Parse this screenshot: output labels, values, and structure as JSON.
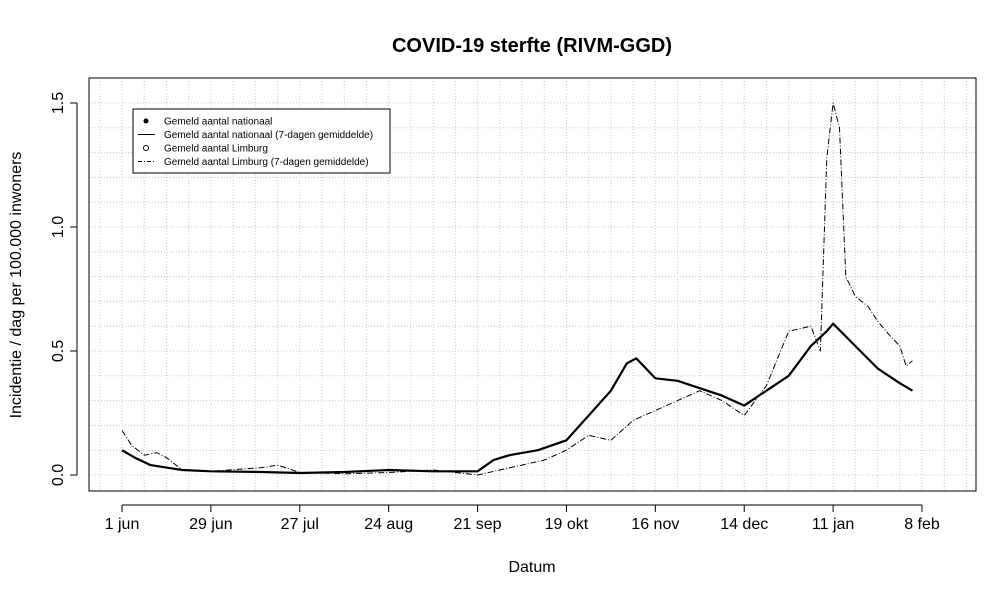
{
  "chart_data": {
    "type": "line",
    "title": "COVID-19 sterfte (RIVM-GGD)",
    "xlabel": "Datum",
    "ylabel": "Incidentie / dag per 100.000 inwoners",
    "x_ticks": [
      "1 jun",
      "29 jun",
      "27 jul",
      "24 aug",
      "21 sep",
      "19 okt",
      "16 nov",
      "14 dec",
      "11 jan",
      "8 feb"
    ],
    "x_tick_dates": [
      "2020-06-01",
      "2020-06-29",
      "2020-07-27",
      "2020-08-24",
      "2020-09-21",
      "2020-10-19",
      "2020-11-16",
      "2020-12-14",
      "2021-01-11",
      "2021-02-08"
    ],
    "xlim": [
      "2020-05-22",
      "2021-02-24"
    ],
    "y_ticks": [
      "0.0",
      "0.5",
      "1.0",
      "1.5"
    ],
    "y_tick_values": [
      0.0,
      0.5,
      1.0,
      1.5
    ],
    "ylim": [
      -0.06,
      1.56
    ],
    "grid": true,
    "legend_position": "top-left",
    "legend": [
      {
        "label": "Gemeld aantal nationaal",
        "symbol": "filled-dot"
      },
      {
        "label": "Gemeld aantal nationaal (7-dagen gemiddelde)",
        "symbol": "solid-line"
      },
      {
        "label": "Gemeld aantal Limburg",
        "symbol": "open-circle"
      },
      {
        "label": "Gemeld aantal Limburg (7-dagen gemiddelde)",
        "symbol": "dash-dot-line"
      }
    ],
    "series": [
      {
        "name": "Gemeld aantal nationaal (7-dagen gemiddelde)",
        "style": "solid",
        "x": [
          "2020-06-01",
          "2020-06-05",
          "2020-06-10",
          "2020-06-15",
          "2020-06-20",
          "2020-06-29",
          "2020-07-15",
          "2020-07-27",
          "2020-08-10",
          "2020-08-24",
          "2020-09-07",
          "2020-09-21",
          "2020-09-26",
          "2020-10-01",
          "2020-10-10",
          "2020-10-19",
          "2020-10-26",
          "2020-11-02",
          "2020-11-07",
          "2020-11-10",
          "2020-11-16",
          "2020-11-23",
          "2020-11-30",
          "2020-12-07",
          "2020-12-14",
          "2020-12-21",
          "2020-12-28",
          "2021-01-04",
          "2021-01-09",
          "2021-01-11",
          "2021-01-18",
          "2021-01-25",
          "2021-02-01",
          "2021-02-05"
        ],
        "y": [
          0.1,
          0.07,
          0.04,
          0.03,
          0.02,
          0.015,
          0.012,
          0.008,
          0.012,
          0.02,
          0.015,
          0.015,
          0.06,
          0.08,
          0.1,
          0.14,
          0.24,
          0.34,
          0.45,
          0.47,
          0.39,
          0.38,
          0.35,
          0.32,
          0.28,
          0.34,
          0.4,
          0.52,
          0.58,
          0.61,
          0.52,
          0.43,
          0.37,
          0.34
        ]
      },
      {
        "name": "Gemeld aantal Limburg (7-dagen gemiddelde)",
        "style": "dashdot",
        "x": [
          "2020-06-01",
          "2020-06-04",
          "2020-06-08",
          "2020-06-12",
          "2020-06-15",
          "2020-06-20",
          "2020-06-29",
          "2020-07-15",
          "2020-07-20",
          "2020-07-27",
          "2020-08-10",
          "2020-08-24",
          "2020-09-07",
          "2020-09-21",
          "2020-09-28",
          "2020-10-05",
          "2020-10-12",
          "2020-10-19",
          "2020-10-26",
          "2020-11-02",
          "2020-11-09",
          "2020-11-16",
          "2020-11-23",
          "2020-11-30",
          "2020-12-07",
          "2020-12-14",
          "2020-12-21",
          "2020-12-28",
          "2021-01-04",
          "2021-01-07",
          "2021-01-09",
          "2021-01-11",
          "2021-01-13",
          "2021-01-15",
          "2021-01-18",
          "2021-01-22",
          "2021-01-25",
          "2021-01-29",
          "2021-02-01",
          "2021-02-03",
          "2021-02-05"
        ],
        "y": [
          0.18,
          0.12,
          0.08,
          0.09,
          0.07,
          0.02,
          0.015,
          0.03,
          0.04,
          0.01,
          0.005,
          0.01,
          0.02,
          0.0,
          0.02,
          0.04,
          0.06,
          0.1,
          0.16,
          0.14,
          0.22,
          0.26,
          0.3,
          0.34,
          0.3,
          0.24,
          0.36,
          0.58,
          0.6,
          0.5,
          1.28,
          1.5,
          1.4,
          0.8,
          0.72,
          0.68,
          0.62,
          0.56,
          0.52,
          0.44,
          0.46
        ]
      }
    ]
  }
}
